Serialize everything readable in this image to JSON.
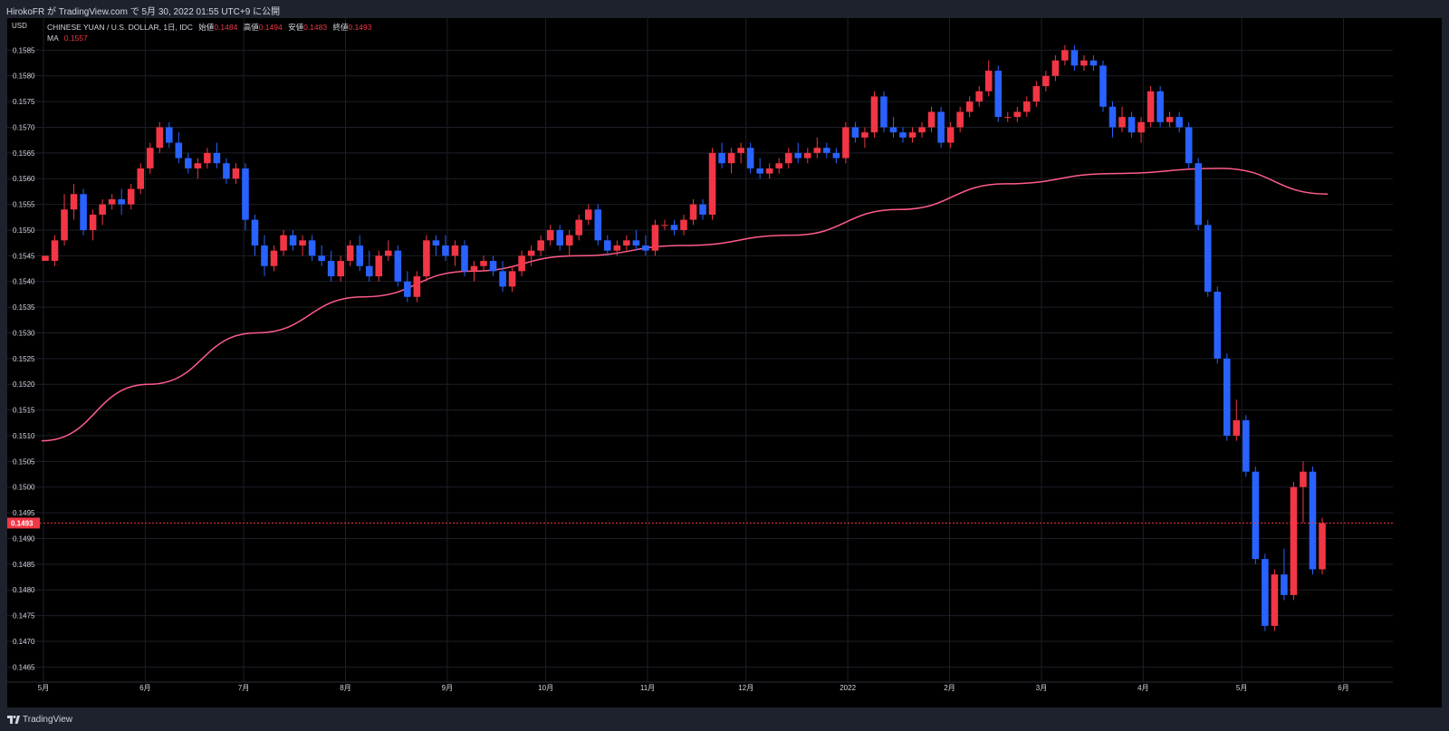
{
  "header": {
    "publish_text": "HirokoFR が TradingView.com で 5月 30, 2022 01:55 UTC+9 に公開"
  },
  "legend": {
    "symbol": "CHINESE YUAN / U.S. DOLLAR, 1日, IDC",
    "open_label": "始値",
    "open": "0.1484",
    "high_label": "高値",
    "high": "0.1494",
    "low_label": "安値",
    "low": "0.1483",
    "close_label": "終値",
    "close": "0.1493",
    "ma_label": "MA",
    "ma_value": "0.1557"
  },
  "axis_currency": "USD",
  "footer": {
    "brand": "TradingView"
  },
  "colors": {
    "background": "#000000",
    "frame": "#1e222d",
    "grid": "#1c1f28",
    "up": "#f23645",
    "down": "#2962ff",
    "ma": "#ff5c8a",
    "price_line": "#f23645",
    "text": "#d1d4dc"
  },
  "chart_data": {
    "type": "candlestick",
    "title": "CHINESE YUAN / U.S. DOLLAR, 1日, IDC",
    "ylabel": "USD",
    "ylim": [
      0.1464,
      0.159
    ],
    "y_ticks": [
      "0.1465",
      "0.1470",
      "0.1475",
      "0.1480",
      "0.1485",
      "0.1490",
      "0.1495",
      "0.1500",
      "0.1505",
      "0.1510",
      "0.1515",
      "0.1520",
      "0.1525",
      "0.1530",
      "0.1535",
      "0.1540",
      "0.1545",
      "0.1550",
      "0.1555",
      "0.1560",
      "0.1565",
      "0.1570",
      "0.1575",
      "0.1580",
      "0.1585"
    ],
    "x_ticks": [
      {
        "label": "5月",
        "day": 0
      },
      {
        "label": "6月",
        "day": 31
      },
      {
        "label": "7月",
        "day": 61
      },
      {
        "label": "8月",
        "day": 92
      },
      {
        "label": "9月",
        "day": 123
      },
      {
        "label": "10月",
        "day": 153
      },
      {
        "label": "11月",
        "day": 184
      },
      {
        "label": "12月",
        "day": 214
      },
      {
        "label": "2022",
        "day": 245
      },
      {
        "label": "2月",
        "day": 276
      },
      {
        "label": "3月",
        "day": 304
      },
      {
        "label": "4月",
        "day": 335
      },
      {
        "label": "5月",
        "day": 365
      },
      {
        "label": "6月",
        "day": 396
      }
    ],
    "xlim_days": [
      0,
      415
    ],
    "last_price": "0.1493",
    "ma_series": {
      "name": "MA",
      "values": [
        0.1509,
        0.152,
        0.153,
        0.1537,
        0.1542,
        0.1545,
        0.1547,
        0.1549,
        0.1554,
        0.1559,
        0.1561,
        0.1562,
        0.1557
      ]
    },
    "candles": [
      [
        0.1544,
        0.1545,
        0.1544,
        0.1545
      ],
      [
        0.1544,
        0.1549,
        0.1543,
        0.1548
      ],
      [
        0.1548,
        0.1557,
        0.1547,
        0.1554
      ],
      [
        0.1554,
        0.1559,
        0.1552,
        0.1557
      ],
      [
        0.1557,
        0.1558,
        0.1549,
        0.155
      ],
      [
        0.155,
        0.1554,
        0.1548,
        0.1553
      ],
      [
        0.1553,
        0.1556,
        0.1551,
        0.1555
      ],
      [
        0.1555,
        0.1557,
        0.1554,
        0.1556
      ],
      [
        0.1556,
        0.1558,
        0.1553,
        0.1555
      ],
      [
        0.1555,
        0.1559,
        0.1554,
        0.1558
      ],
      [
        0.1558,
        0.1563,
        0.1557,
        0.1562
      ],
      [
        0.1562,
        0.1567,
        0.1561,
        0.1566
      ],
      [
        0.1566,
        0.1571,
        0.1565,
        0.157
      ],
      [
        0.157,
        0.1571,
        0.1566,
        0.1567
      ],
      [
        0.1567,
        0.1569,
        0.1563,
        0.1564
      ],
      [
        0.1564,
        0.1565,
        0.1561,
        0.1562
      ],
      [
        0.1562,
        0.1564,
        0.156,
        0.1563
      ],
      [
        0.1563,
        0.1566,
        0.1562,
        0.1565
      ],
      [
        0.1565,
        0.1567,
        0.1562,
        0.1563
      ],
      [
        0.1563,
        0.1564,
        0.1559,
        0.156
      ],
      [
        0.156,
        0.1563,
        0.1559,
        0.1562
      ],
      [
        0.1562,
        0.1563,
        0.155,
        0.1552
      ],
      [
        0.1552,
        0.1553,
        0.1545,
        0.1547
      ],
      [
        0.1547,
        0.1549,
        0.1541,
        0.1543
      ],
      [
        0.1543,
        0.1547,
        0.1542,
        0.1546
      ],
      [
        0.1546,
        0.155,
        0.1545,
        0.1549
      ],
      [
        0.1549,
        0.155,
        0.1546,
        0.1547
      ],
      [
        0.1547,
        0.1549,
        0.1545,
        0.1548
      ],
      [
        0.1548,
        0.1549,
        0.1544,
        0.1545
      ],
      [
        0.1545,
        0.1547,
        0.1543,
        0.1544
      ],
      [
        0.1544,
        0.1546,
        0.154,
        0.1541
      ],
      [
        0.1541,
        0.1545,
        0.154,
        0.1544
      ],
      [
        0.1544,
        0.1548,
        0.1543,
        0.1547
      ],
      [
        0.1547,
        0.1549,
        0.1542,
        0.1543
      ],
      [
        0.1543,
        0.1546,
        0.154,
        0.1541
      ],
      [
        0.1541,
        0.1546,
        0.154,
        0.1545
      ],
      [
        0.1545,
        0.1548,
        0.1544,
        0.1546
      ],
      [
        0.1546,
        0.1547,
        0.1539,
        0.154
      ],
      [
        0.154,
        0.1542,
        0.1536,
        0.1537
      ],
      [
        0.1537,
        0.1542,
        0.1536,
        0.1541
      ],
      [
        0.1541,
        0.1549,
        0.154,
        0.1548
      ],
      [
        0.1548,
        0.1549,
        0.1545,
        0.1547
      ],
      [
        0.1547,
        0.1549,
        0.1544,
        0.1545
      ],
      [
        0.1545,
        0.1548,
        0.1543,
        0.1547
      ],
      [
        0.1547,
        0.1548,
        0.1541,
        0.1542
      ],
      [
        0.1542,
        0.1544,
        0.154,
        0.1543
      ],
      [
        0.1543,
        0.1545,
        0.1542,
        0.1544
      ],
      [
        0.1544,
        0.1545,
        0.1541,
        0.1542
      ],
      [
        0.1542,
        0.1544,
        0.1538,
        0.1539
      ],
      [
        0.1539,
        0.1543,
        0.1538,
        0.1542
      ],
      [
        0.1542,
        0.1546,
        0.1541,
        0.1545
      ],
      [
        0.1545,
        0.1547,
        0.1543,
        0.1546
      ],
      [
        0.1546,
        0.1549,
        0.1545,
        0.1548
      ],
      [
        0.1548,
        0.1551,
        0.1547,
        0.155
      ],
      [
        0.155,
        0.1551,
        0.1546,
        0.1547
      ],
      [
        0.1547,
        0.155,
        0.1545,
        0.1549
      ],
      [
        0.1549,
        0.1553,
        0.1548,
        0.1552
      ],
      [
        0.1552,
        0.1555,
        0.1551,
        0.1554
      ],
      [
        0.1554,
        0.1555,
        0.1547,
        0.1548
      ],
      [
        0.1548,
        0.1549,
        0.1545,
        0.1546
      ],
      [
        0.1546,
        0.1548,
        0.1545,
        0.1547
      ],
      [
        0.1547,
        0.1549,
        0.1546,
        0.1548
      ],
      [
        0.1548,
        0.155,
        0.1546,
        0.1547
      ],
      [
        0.1547,
        0.1549,
        0.1545,
        0.1546
      ],
      [
        0.1546,
        0.1552,
        0.1545,
        0.1551
      ],
      [
        0.1551,
        0.1552,
        0.155,
        0.1551
      ],
      [
        0.1551,
        0.1552,
        0.1549,
        0.155
      ],
      [
        0.155,
        0.1553,
        0.1549,
        0.1552
      ],
      [
        0.1552,
        0.1556,
        0.1551,
        0.1555
      ],
      [
        0.1555,
        0.1556,
        0.1552,
        0.1553
      ],
      [
        0.1553,
        0.1566,
        0.1552,
        0.1565
      ],
      [
        0.1565,
        0.1567,
        0.1562,
        0.1563
      ],
      [
        0.1563,
        0.1566,
        0.1561,
        0.1565
      ],
      [
        0.1565,
        0.1567,
        0.1563,
        0.1566
      ],
      [
        0.1566,
        0.1567,
        0.1561,
        0.1562
      ],
      [
        0.1562,
        0.1564,
        0.156,
        0.1561
      ],
      [
        0.1561,
        0.1563,
        0.156,
        0.1562
      ],
      [
        0.1562,
        0.1564,
        0.1561,
        0.1563
      ],
      [
        0.1563,
        0.1566,
        0.1562,
        0.1565
      ],
      [
        0.1565,
        0.1567,
        0.1563,
        0.1564
      ],
      [
        0.1564,
        0.1566,
        0.1563,
        0.1565
      ],
      [
        0.1565,
        0.1568,
        0.1564,
        0.1566
      ],
      [
        0.1566,
        0.1567,
        0.1564,
        0.1565
      ],
      [
        0.1565,
        0.1566,
        0.1563,
        0.1564
      ],
      [
        0.1564,
        0.1571,
        0.1563,
        0.157
      ],
      [
        0.157,
        0.1571,
        0.1567,
        0.1568
      ],
      [
        0.1568,
        0.157,
        0.1566,
        0.1569
      ],
      [
        0.1569,
        0.1577,
        0.1568,
        0.1576
      ],
      [
        0.1576,
        0.1577,
        0.1569,
        0.157
      ],
      [
        0.157,
        0.1572,
        0.1568,
        0.1569
      ],
      [
        0.1569,
        0.157,
        0.1567,
        0.1568
      ],
      [
        0.1568,
        0.157,
        0.1567,
        0.1569
      ],
      [
        0.1569,
        0.1571,
        0.1568,
        0.157
      ],
      [
        0.157,
        0.1574,
        0.1569,
        0.1573
      ],
      [
        0.1573,
        0.1574,
        0.1566,
        0.1567
      ],
      [
        0.1567,
        0.1571,
        0.1566,
        0.157
      ],
      [
        0.157,
        0.1574,
        0.1569,
        0.1573
      ],
      [
        0.1573,
        0.1576,
        0.1572,
        0.1575
      ],
      [
        0.1575,
        0.1578,
        0.1574,
        0.1577
      ],
      [
        0.1577,
        0.1583,
        0.1576,
        0.1581
      ],
      [
        0.1581,
        0.1582,
        0.1571,
        0.1572
      ],
      [
        0.1572,
        0.1573,
        0.1571,
        0.1572
      ],
      [
        0.1572,
        0.1574,
        0.1571,
        0.1573
      ],
      [
        0.1573,
        0.1576,
        0.1572,
        0.1575
      ],
      [
        0.1575,
        0.1579,
        0.1574,
        0.1578
      ],
      [
        0.1578,
        0.1581,
        0.1577,
        0.158
      ],
      [
        0.158,
        0.1584,
        0.1579,
        0.1583
      ],
      [
        0.1583,
        0.1586,
        0.1582,
        0.1585
      ],
      [
        0.1585,
        0.1586,
        0.1581,
        0.1582
      ],
      [
        0.1582,
        0.1584,
        0.1581,
        0.1583
      ],
      [
        0.1583,
        0.1584,
        0.1581,
        0.1582
      ],
      [
        0.1582,
        0.1583,
        0.1573,
        0.1574
      ],
      [
        0.1574,
        0.1575,
        0.1568,
        0.157
      ],
      [
        0.157,
        0.1574,
        0.1569,
        0.1572
      ],
      [
        0.1572,
        0.1573,
        0.1568,
        0.1569
      ],
      [
        0.1569,
        0.1572,
        0.1567,
        0.1571
      ],
      [
        0.1571,
        0.1578,
        0.157,
        0.1577
      ],
      [
        0.1577,
        0.1578,
        0.157,
        0.1571
      ],
      [
        0.1571,
        0.1573,
        0.157,
        0.1572
      ],
      [
        0.1572,
        0.1573,
        0.1569,
        0.157
      ],
      [
        0.157,
        0.1571,
        0.1562,
        0.1563
      ],
      [
        0.1563,
        0.1564,
        0.155,
        0.1551
      ],
      [
        0.1551,
        0.1552,
        0.1537,
        0.1538
      ],
      [
        0.1538,
        0.1539,
        0.1524,
        0.1525
      ],
      [
        0.1525,
        0.1526,
        0.1509,
        0.151
      ],
      [
        0.151,
        0.1517,
        0.1509,
        0.1513
      ],
      [
        0.1513,
        0.1514,
        0.1502,
        0.1503
      ],
      [
        0.1503,
        0.1504,
        0.1485,
        0.1486
      ],
      [
        0.1486,
        0.1487,
        0.1472,
        0.1473
      ],
      [
        0.1473,
        0.1484,
        0.1472,
        0.1483
      ],
      [
        0.1483,
        0.1488,
        0.1478,
        0.1479
      ],
      [
        0.1479,
        0.1501,
        0.1478,
        0.15
      ],
      [
        0.15,
        0.1505,
        0.1493,
        0.1503
      ],
      [
        0.1503,
        0.1504,
        0.1483,
        0.1484
      ],
      [
        0.1484,
        0.1494,
        0.1483,
        0.1493
      ]
    ]
  }
}
